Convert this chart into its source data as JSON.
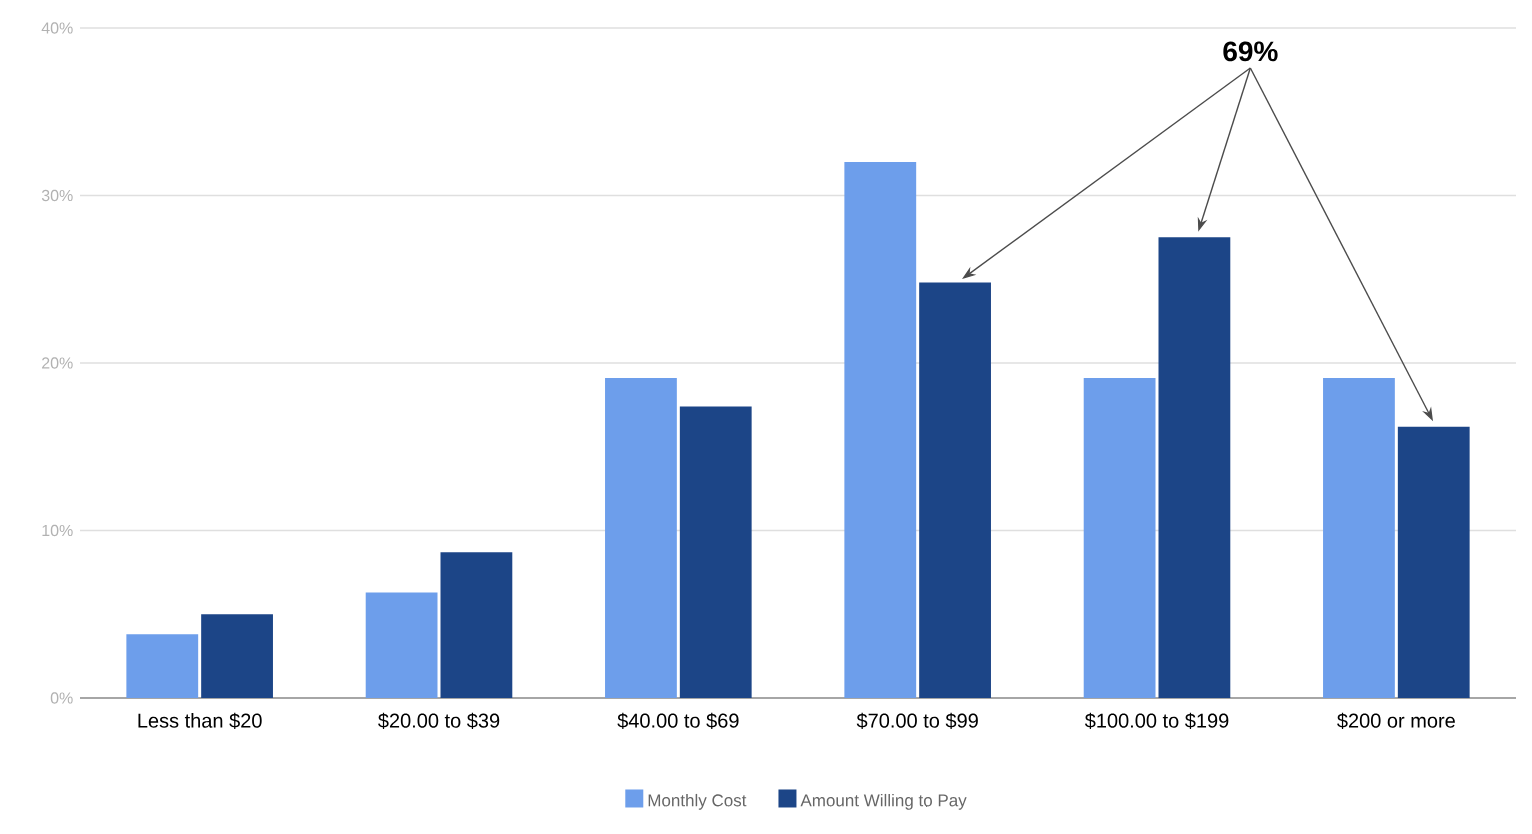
{
  "chart_data": {
    "type": "bar",
    "categories": [
      "Less than $20",
      "$20.00 to $39",
      "$40.00 to $69",
      "$70.00 to $99",
      "$100.00 to $199",
      "$200 or more"
    ],
    "series": [
      {
        "name": "Monthly Cost",
        "color": "#6d9eeb",
        "values": [
          3.8,
          6.3,
          19.1,
          32.0,
          19.1,
          19.1
        ]
      },
      {
        "name": "Amount Willing to Pay",
        "color": "#1c4587",
        "values": [
          5.0,
          8.7,
          17.4,
          24.8,
          27.5,
          16.2
        ]
      }
    ],
    "ylim": [
      0,
      40
    ],
    "yticks": [
      {
        "value": 0,
        "label": "0%"
      },
      {
        "value": 10,
        "label": "10%"
      },
      {
        "value": 20,
        "label": "20%"
      },
      {
        "value": 30,
        "label": "30%"
      },
      {
        "value": 40,
        "label": "40%"
      }
    ],
    "grid": "y",
    "legend": "bottom",
    "annotations": [
      "69%"
    ]
  }
}
